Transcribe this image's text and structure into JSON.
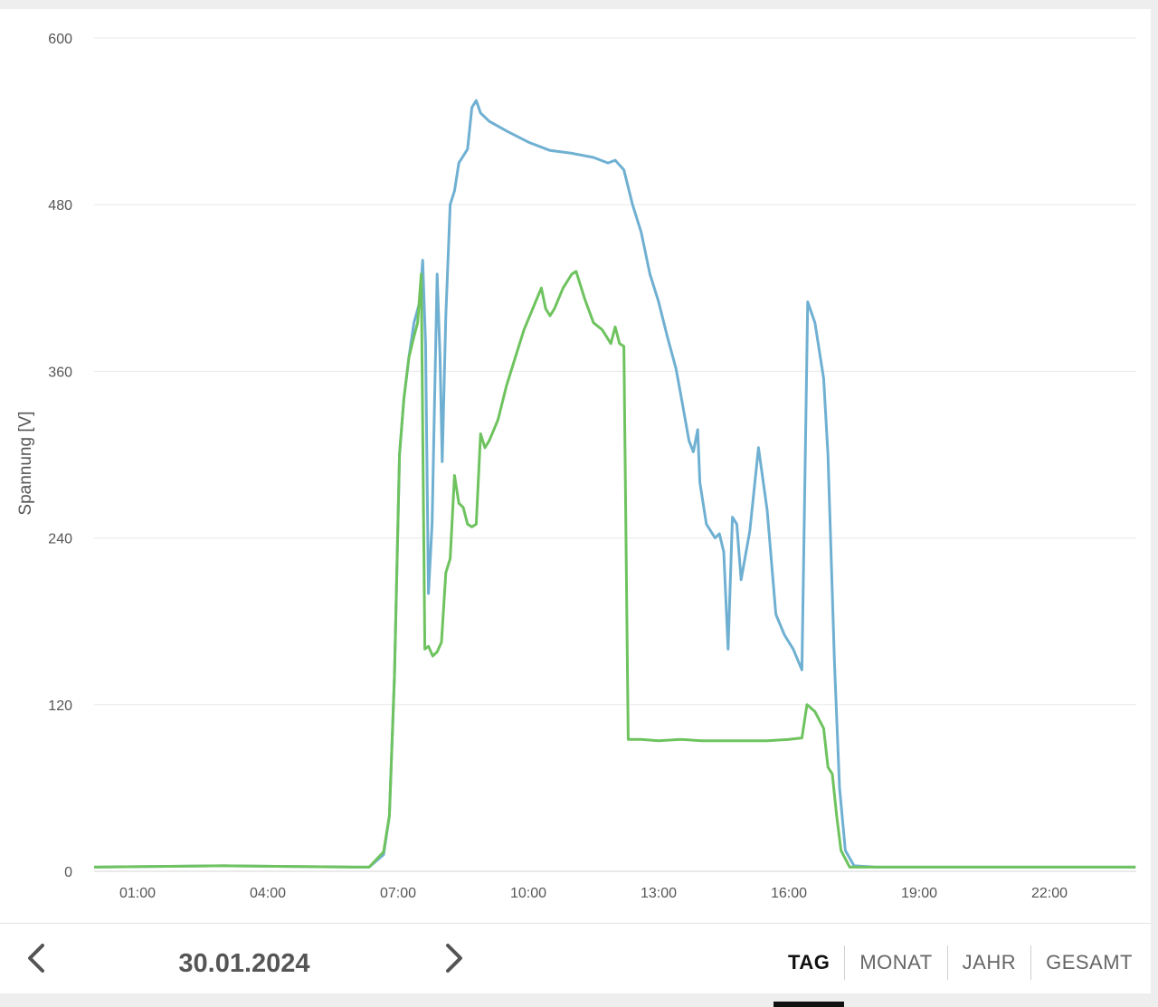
{
  "chart_data": {
    "type": "line",
    "title": "",
    "xlabel": "",
    "ylabel": "Spannung [V]",
    "ylim": [
      0,
      600
    ],
    "xlim": [
      "00:00",
      "24:00"
    ],
    "y_ticks": [
      "0",
      "120",
      "240",
      "360",
      "480",
      "600"
    ],
    "x_ticks": [
      "01:00",
      "04:00",
      "07:00",
      "10:00",
      "13:00",
      "16:00",
      "19:00",
      "22:00"
    ],
    "grid": "horizontal",
    "series": [
      {
        "color": "#6fb0d2",
        "points": [
          [
            "00:00",
            3
          ],
          [
            "03:00",
            4
          ],
          [
            "06:00",
            3
          ],
          [
            "06:20",
            3
          ],
          [
            "06:40",
            12
          ],
          [
            "06:48",
            40
          ],
          [
            "06:55",
            140
          ],
          [
            "07:02",
            300
          ],
          [
            "07:08",
            340
          ],
          [
            "07:15",
            370
          ],
          [
            "07:22",
            395
          ],
          [
            "07:30",
            410
          ],
          [
            "07:34",
            440
          ],
          [
            "07:38",
            380
          ],
          [
            "07:42",
            200
          ],
          [
            "07:47",
            250
          ],
          [
            "07:54",
            430
          ],
          [
            "07:58",
            370
          ],
          [
            "08:01",
            295
          ],
          [
            "08:06",
            400
          ],
          [
            "08:12",
            480
          ],
          [
            "08:18",
            490
          ],
          [
            "08:24",
            510
          ],
          [
            "08:30",
            515
          ],
          [
            "08:36",
            520
          ],
          [
            "08:42",
            550
          ],
          [
            "08:48",
            555
          ],
          [
            "08:54",
            546
          ],
          [
            "09:06",
            540
          ],
          [
            "09:30",
            533
          ],
          [
            "10:00",
            525
          ],
          [
            "10:30",
            519
          ],
          [
            "11:00",
            517
          ],
          [
            "11:30",
            514
          ],
          [
            "11:50",
            510
          ],
          [
            "12:00",
            512
          ],
          [
            "12:12",
            505
          ],
          [
            "12:24",
            480
          ],
          [
            "12:36",
            460
          ],
          [
            "12:48",
            430
          ],
          [
            "13:00",
            410
          ],
          [
            "13:12",
            385
          ],
          [
            "13:24",
            362
          ],
          [
            "13:30",
            345
          ],
          [
            "13:42",
            310
          ],
          [
            "13:48",
            302
          ],
          [
            "13:54",
            318
          ],
          [
            "13:57",
            280
          ],
          [
            "14:06",
            250
          ],
          [
            "14:18",
            240
          ],
          [
            "14:24",
            243
          ],
          [
            "14:30",
            230
          ],
          [
            "14:36",
            160
          ],
          [
            "14:42",
            255
          ],
          [
            "14:48",
            250
          ],
          [
            "14:54",
            210
          ],
          [
            "15:06",
            245
          ],
          [
            "15:18",
            305
          ],
          [
            "15:30",
            260
          ],
          [
            "15:42",
            185
          ],
          [
            "15:54",
            170
          ],
          [
            "16:06",
            160
          ],
          [
            "16:18",
            145
          ],
          [
            "16:26",
            410
          ],
          [
            "16:36",
            395
          ],
          [
            "16:48",
            355
          ],
          [
            "16:54",
            300
          ],
          [
            "17:03",
            150
          ],
          [
            "17:10",
            60
          ],
          [
            "17:18",
            15
          ],
          [
            "17:30",
            4
          ],
          [
            "18:00",
            3
          ],
          [
            "21:00",
            3
          ],
          [
            "23:59",
            3
          ]
        ]
      },
      {
        "color": "#6ec35f",
        "points": [
          [
            "00:00",
            3
          ],
          [
            "03:00",
            4
          ],
          [
            "06:00",
            3
          ],
          [
            "06:20",
            3
          ],
          [
            "06:40",
            14
          ],
          [
            "06:48",
            40
          ],
          [
            "06:55",
            140
          ],
          [
            "07:02",
            300
          ],
          [
            "07:08",
            340
          ],
          [
            "07:15",
            370
          ],
          [
            "07:22",
            385
          ],
          [
            "07:27",
            395
          ],
          [
            "07:32",
            430
          ],
          [
            "07:37",
            160
          ],
          [
            "07:42",
            162
          ],
          [
            "07:48",
            155
          ],
          [
            "07:54",
            158
          ],
          [
            "08:00",
            165
          ],
          [
            "08:06",
            215
          ],
          [
            "08:12",
            225
          ],
          [
            "08:18",
            285
          ],
          [
            "08:24",
            265
          ],
          [
            "08:30",
            262
          ],
          [
            "08:36",
            250
          ],
          [
            "08:42",
            248
          ],
          [
            "08:48",
            250
          ],
          [
            "08:54",
            315
          ],
          [
            "09:00",
            305
          ],
          [
            "09:06",
            310
          ],
          [
            "09:18",
            325
          ],
          [
            "09:30",
            350
          ],
          [
            "09:42",
            370
          ],
          [
            "09:54",
            390
          ],
          [
            "10:06",
            405
          ],
          [
            "10:18",
            420
          ],
          [
            "10:24",
            405
          ],
          [
            "10:30",
            400
          ],
          [
            "10:36",
            405
          ],
          [
            "10:48",
            420
          ],
          [
            "11:00",
            430
          ],
          [
            "11:06",
            432
          ],
          [
            "11:18",
            412
          ],
          [
            "11:30",
            395
          ],
          [
            "11:42",
            390
          ],
          [
            "11:54",
            380
          ],
          [
            "12:00",
            392
          ],
          [
            "12:06",
            380
          ],
          [
            "12:12",
            378
          ],
          [
            "12:18",
            95
          ],
          [
            "12:36",
            95
          ],
          [
            "13:00",
            94
          ],
          [
            "13:30",
            95
          ],
          [
            "14:00",
            94
          ],
          [
            "14:30",
            94
          ],
          [
            "15:00",
            94
          ],
          [
            "15:30",
            94
          ],
          [
            "16:00",
            95
          ],
          [
            "16:18",
            96
          ],
          [
            "16:25",
            120
          ],
          [
            "16:36",
            115
          ],
          [
            "16:48",
            103
          ],
          [
            "16:54",
            75
          ],
          [
            "17:00",
            70
          ],
          [
            "17:06",
            40
          ],
          [
            "17:12",
            15
          ],
          [
            "17:24",
            3
          ],
          [
            "18:00",
            3
          ],
          [
            "21:00",
            3
          ],
          [
            "23:59",
            3
          ]
        ]
      }
    ]
  },
  "navigation": {
    "date": "30.01.2024",
    "prev_icon": "chevron-left-icon",
    "next_icon": "chevron-right-icon"
  },
  "range_tabs": [
    {
      "label": "TAG",
      "active": true
    },
    {
      "label": "MONAT",
      "active": false
    },
    {
      "label": "JAHR",
      "active": false
    },
    {
      "label": "GESAMT",
      "active": false
    }
  ]
}
